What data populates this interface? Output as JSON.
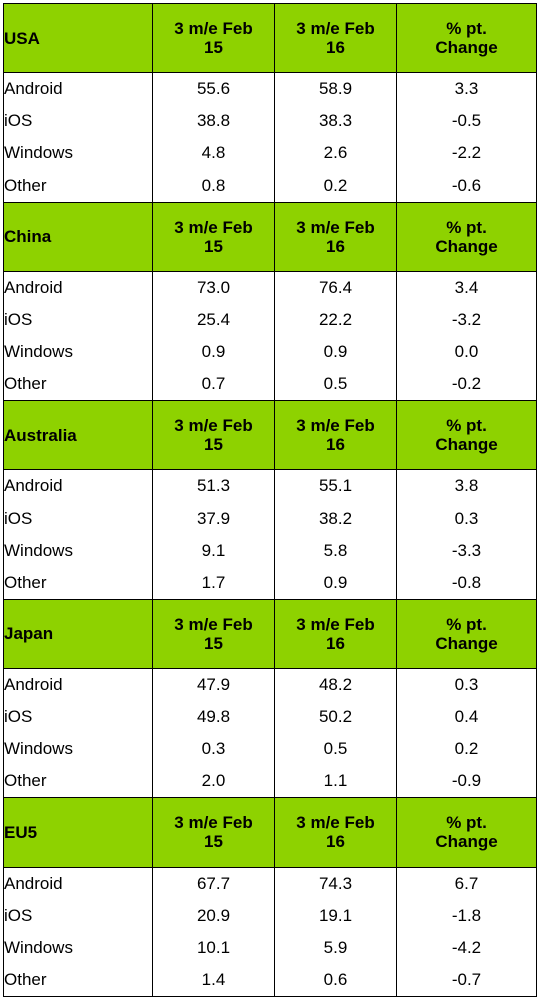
{
  "header_columns": [
    "3 m/e Feb 15",
    "3 m/e Feb 16",
    "% pt. Change"
  ],
  "header_columns_lines": [
    [
      "3 m/e Feb",
      "15"
    ],
    [
      "3 m/e Feb",
      "16"
    ],
    [
      "% pt.",
      "Change"
    ]
  ],
  "regions": [
    {
      "name": "USA",
      "rows": [
        {
          "os": "Android",
          "feb15": "55.6",
          "feb16": "58.9",
          "change": "3.3"
        },
        {
          "os": "iOS",
          "feb15": "38.8",
          "feb16": "38.3",
          "change": "-0.5"
        },
        {
          "os": "Windows",
          "feb15": "4.8",
          "feb16": "2.6",
          "change": "-2.2"
        },
        {
          "os": "Other",
          "feb15": "0.8",
          "feb16": "0.2",
          "change": "-0.6"
        }
      ]
    },
    {
      "name": "China",
      "rows": [
        {
          "os": "Android",
          "feb15": "73.0",
          "feb16": "76.4",
          "change": "3.4"
        },
        {
          "os": "iOS",
          "feb15": "25.4",
          "feb16": "22.2",
          "change": "-3.2"
        },
        {
          "os": "Windows",
          "feb15": "0.9",
          "feb16": "0.9",
          "change": "0.0"
        },
        {
          "os": "Other",
          "feb15": "0.7",
          "feb16": "0.5",
          "change": "-0.2"
        }
      ]
    },
    {
      "name": "Australia",
      "rows": [
        {
          "os": "Android",
          "feb15": "51.3",
          "feb16": "55.1",
          "change": "3.8"
        },
        {
          "os": "iOS",
          "feb15": "37.9",
          "feb16": "38.2",
          "change": "0.3"
        },
        {
          "os": "Windows",
          "feb15": "9.1",
          "feb16": "5.8",
          "change": "-3.3"
        },
        {
          "os": "Other",
          "feb15": "1.7",
          "feb16": "0.9",
          "change": "-0.8"
        }
      ]
    },
    {
      "name": "Japan",
      "rows": [
        {
          "os": "Android",
          "feb15": "47.9",
          "feb16": "48.2",
          "change": "0.3"
        },
        {
          "os": "iOS",
          "feb15": "49.8",
          "feb16": "50.2",
          "change": "0.4"
        },
        {
          "os": "Windows",
          "feb15": "0.3",
          "feb16": "0.5",
          "change": "0.2"
        },
        {
          "os": "Other",
          "feb15": "2.0",
          "feb16": "1.1",
          "change": "-0.9"
        }
      ]
    },
    {
      "name": "EU5",
      "rows": [
        {
          "os": "Android",
          "feb15": "67.7",
          "feb16": "74.3",
          "change": "6.7"
        },
        {
          "os": "iOS",
          "feb15": "20.9",
          "feb16": "19.1",
          "change": "-1.8"
        },
        {
          "os": "Windows",
          "feb15": "10.1",
          "feb16": "5.9",
          "change": "-4.2"
        },
        {
          "os": "Other",
          "feb15": "1.4",
          "feb16": "0.6",
          "change": "-0.7"
        }
      ]
    }
  ],
  "header_color": "#8ed200"
}
